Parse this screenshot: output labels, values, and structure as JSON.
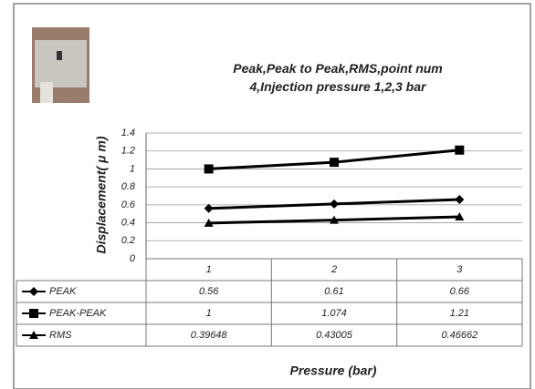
{
  "chart_data": {
    "type": "line",
    "title": "Peak,Peak to Peak,RMS,point num 4,Injection pressure 1,2,3 bar",
    "y_label": "Displacement( μ m)",
    "x_label": "Pressure (bar)",
    "categories": [
      "1",
      "2",
      "3"
    ],
    "series": [
      {
        "name": "PEAK",
        "color": "#000000",
        "marker": "diamond",
        "values": [
          0.56,
          0.61,
          0.66
        ]
      },
      {
        "name": "PEAK-PEAK",
        "color": "#000000",
        "marker": "square",
        "values": [
          1,
          1.074,
          1.21
        ]
      },
      {
        "name": "RMS",
        "color": "#000000",
        "marker": "triangle",
        "values": [
          0.39648,
          0.43005,
          0.46662
        ]
      }
    ],
    "ylim": [
      0,
      1.4
    ],
    "yticks": [
      0,
      0.2,
      0.4,
      0.6,
      0.8,
      1,
      1.2,
      1.4
    ],
    "grid": true
  }
}
